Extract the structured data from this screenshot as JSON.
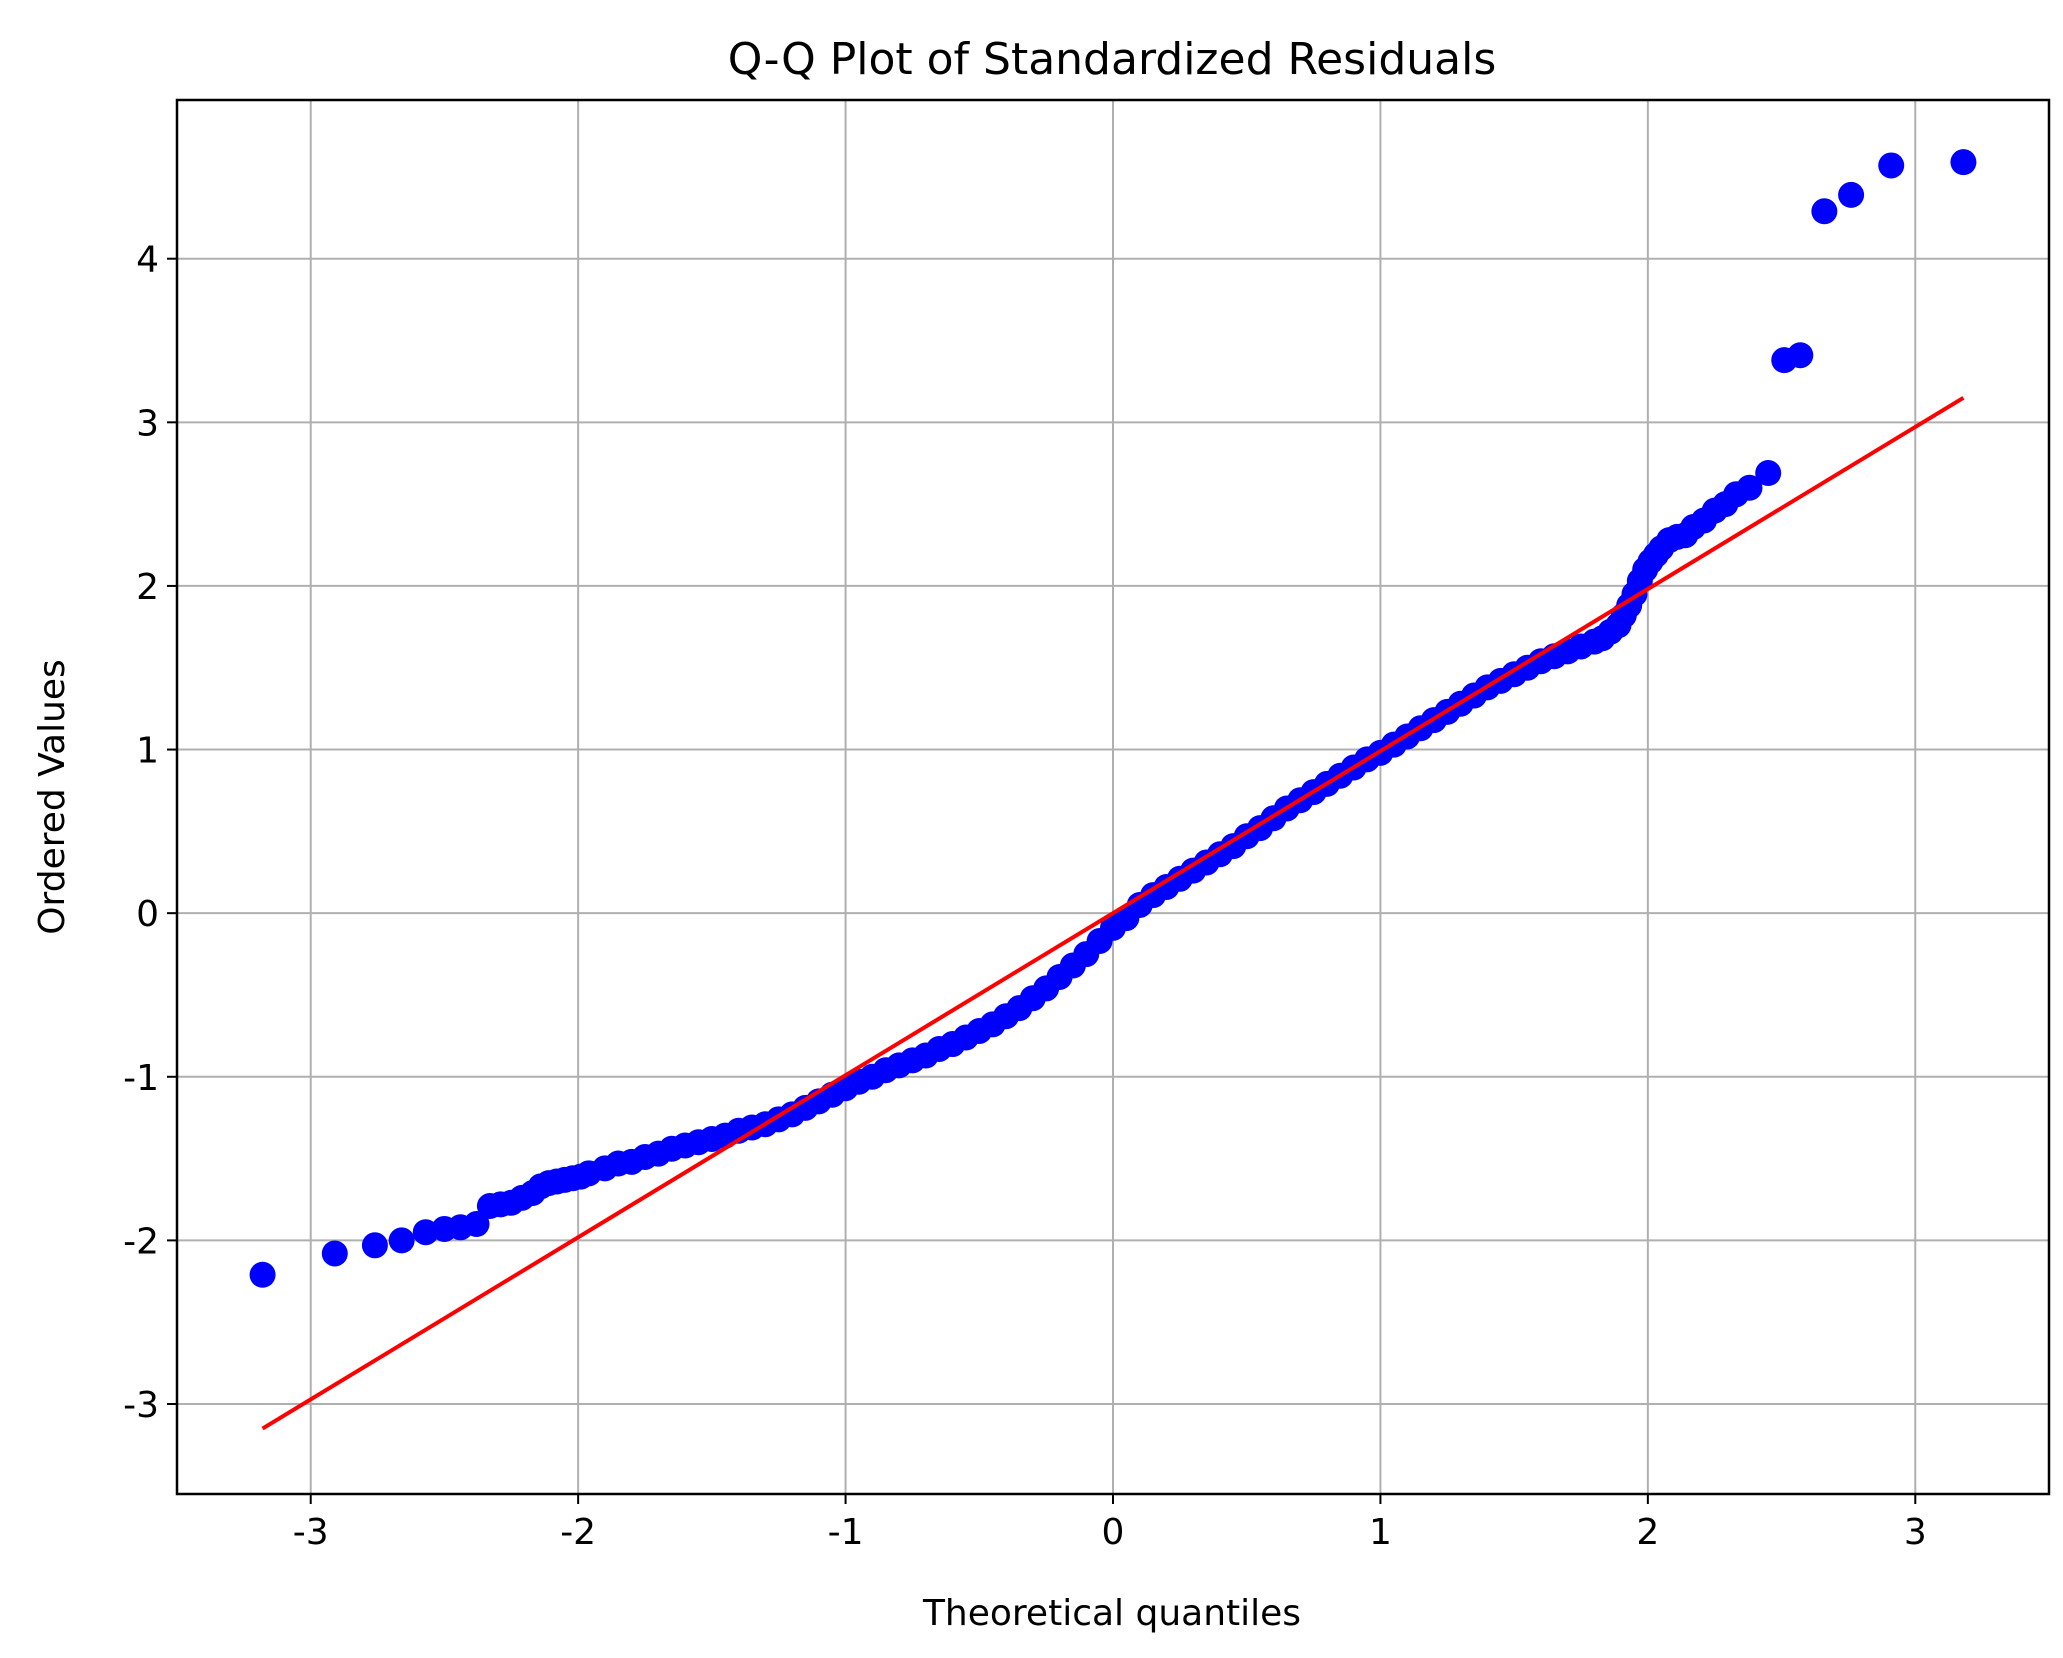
{
  "chart_data": {
    "type": "scatter",
    "title": "Q-Q Plot of Standardized Residuals",
    "xlabel": "Theoretical quantiles",
    "ylabel": "Ordered Values",
    "xlim": [
      -3.5,
      3.5
    ],
    "ylim": [
      -3.55,
      4.97
    ],
    "xticks": [
      -3,
      -2,
      -1,
      0,
      1,
      2,
      3
    ],
    "xtick_labels": [
      "-3",
      "-2",
      "-1",
      "0",
      "1",
      "2",
      "3"
    ],
    "yticks": [
      -3,
      -2,
      -1,
      0,
      1,
      2,
      3,
      4
    ],
    "ytick_labels": [
      "-3",
      "-2",
      "-1",
      "0",
      "1",
      "2",
      "3",
      "4"
    ],
    "grid": true,
    "colors": {
      "points": "#0000ff",
      "fit_line": "#ff0000",
      "grid": "#b0b0b0"
    },
    "points_x": [
      -3.18,
      -2.91,
      -2.76,
      -2.66,
      -2.57,
      -2.5,
      -2.44,
      -2.38,
      -2.33,
      -2.29,
      -2.25,
      -2.21,
      -2.17,
      -2.14,
      -2.11,
      -2.08,
      -2.05,
      -2.02,
      -1.99,
      -1.96,
      -1.9,
      -1.85,
      -1.8,
      -1.75,
      -1.7,
      -1.65,
      -1.6,
      -1.55,
      -1.5,
      -1.45,
      -1.4,
      -1.35,
      -1.3,
      -1.25,
      -1.2,
      -1.15,
      -1.1,
      -1.05,
      -1.0,
      -0.95,
      -0.9,
      -0.85,
      -0.8,
      -0.75,
      -0.7,
      -0.65,
      -0.6,
      -0.55,
      -0.5,
      -0.45,
      -0.4,
      -0.35,
      -0.3,
      -0.25,
      -0.2,
      -0.15,
      -0.1,
      -0.05,
      0.0,
      0.05,
      0.1,
      0.15,
      0.2,
      0.25,
      0.3,
      0.35,
      0.4,
      0.45,
      0.5,
      0.55,
      0.6,
      0.65,
      0.7,
      0.75,
      0.8,
      0.85,
      0.9,
      0.95,
      1.0,
      1.05,
      1.1,
      1.15,
      1.2,
      1.25,
      1.3,
      1.35,
      1.4,
      1.45,
      1.5,
      1.55,
      1.6,
      1.65,
      1.7,
      1.75,
      1.8,
      1.83,
      1.86,
      1.89,
      1.91,
      1.93,
      1.95,
      1.97,
      1.99,
      2.01,
      2.03,
      2.05,
      2.08,
      2.11,
      2.14,
      2.17,
      2.21,
      2.25,
      2.29,
      2.33,
      2.38,
      2.45,
      2.51,
      2.57,
      2.66,
      2.76,
      2.91,
      3.18
    ],
    "points_y": [
      -2.21,
      -2.08,
      -2.03,
      -2.0,
      -1.95,
      -1.93,
      -1.92,
      -1.9,
      -1.79,
      -1.78,
      -1.77,
      -1.74,
      -1.71,
      -1.67,
      -1.65,
      -1.64,
      -1.63,
      -1.62,
      -1.61,
      -1.59,
      -1.56,
      -1.53,
      -1.52,
      -1.49,
      -1.47,
      -1.44,
      -1.42,
      -1.4,
      -1.38,
      -1.36,
      -1.33,
      -1.31,
      -1.29,
      -1.26,
      -1.23,
      -1.19,
      -1.15,
      -1.11,
      -1.07,
      -1.03,
      -1.0,
      -0.96,
      -0.93,
      -0.9,
      -0.87,
      -0.83,
      -0.8,
      -0.76,
      -0.72,
      -0.68,
      -0.63,
      -0.58,
      -0.52,
      -0.46,
      -0.39,
      -0.32,
      -0.25,
      -0.17,
      -0.09,
      -0.03,
      0.05,
      0.11,
      0.16,
      0.21,
      0.26,
      0.31,
      0.36,
      0.41,
      0.47,
      0.52,
      0.58,
      0.64,
      0.69,
      0.74,
      0.79,
      0.84,
      0.89,
      0.94,
      0.98,
      1.03,
      1.08,
      1.13,
      1.18,
      1.23,
      1.28,
      1.33,
      1.38,
      1.42,
      1.46,
      1.5,
      1.54,
      1.57,
      1.6,
      1.63,
      1.66,
      1.68,
      1.72,
      1.76,
      1.82,
      1.88,
      1.95,
      2.03,
      2.1,
      2.15,
      2.19,
      2.23,
      2.28,
      2.3,
      2.31,
      2.36,
      2.4,
      2.46,
      2.5,
      2.56,
      2.6,
      2.69,
      3.38,
      3.41,
      4.29,
      4.39,
      4.57,
      4.59
    ],
    "fit_line": {
      "x": [
        -3.18,
        3.18
      ],
      "y": [
        -3.15,
        3.15
      ]
    }
  }
}
